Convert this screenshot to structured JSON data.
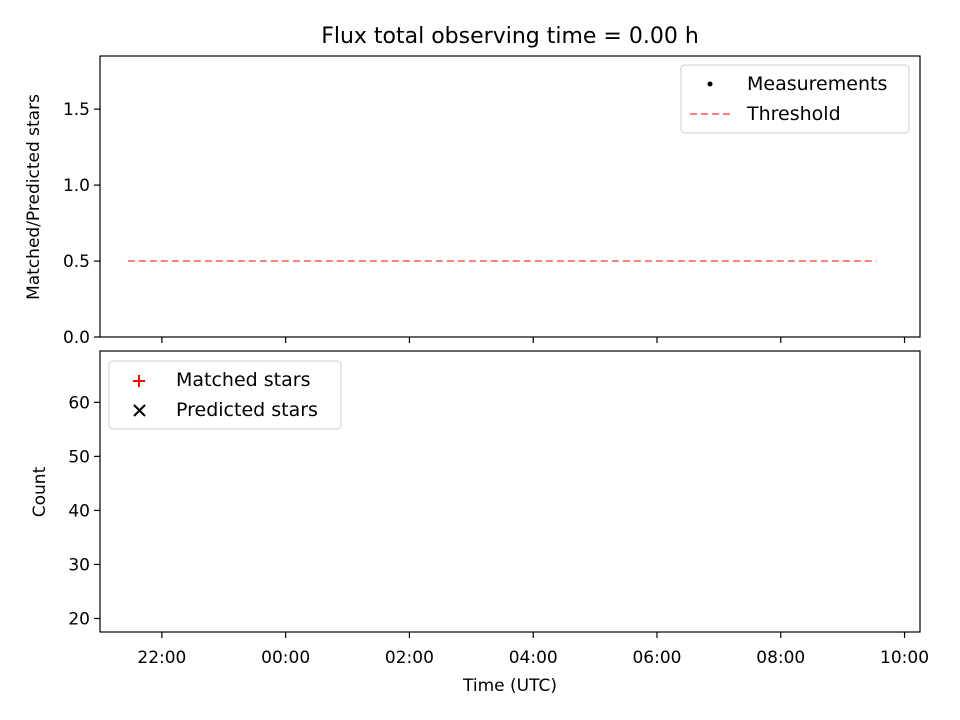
{
  "chart_data": {
    "title": "Flux total observing time = 0.00 h",
    "x_tick_labels": [
      "22:00",
      "00:00",
      "02:00",
      "04:00",
      "06:00",
      "08:00",
      "10:00"
    ],
    "x_tick_hours": [
      22,
      24,
      26,
      28,
      30,
      32,
      34
    ],
    "xlim_hours": [
      21.0,
      34.25
    ],
    "xlabel": "Time (UTC)",
    "panels": [
      {
        "type": "scatter",
        "ylabel": "Matched/Predicted stars",
        "ylim": [
          0,
          1.85
        ],
        "yticks": [
          0.0,
          0.5,
          1.0,
          1.5
        ],
        "ytick_labels": [
          "0.0",
          "0.5",
          "1.0",
          "1.5"
        ],
        "legend_position": "top-right",
        "series": [
          {
            "name": "Measurements",
            "marker": "dot",
            "color": "#000000",
            "x_hours": [],
            "y": []
          }
        ],
        "reference_lines": [
          {
            "name": "Threshold",
            "y": 0.5,
            "x_range_hours": [
              21.45,
              33.55
            ],
            "color": "#ff7f7f",
            "style": "dashed"
          }
        ]
      },
      {
        "type": "scatter",
        "ylabel": "Count",
        "ylim": [
          17.5,
          69.5
        ],
        "yticks": [
          20,
          30,
          40,
          50,
          60
        ],
        "ytick_labels": [
          "20",
          "30",
          "40",
          "50",
          "60"
        ],
        "legend_position": "top-left",
        "series": [
          {
            "name": "Matched stars",
            "marker": "plus",
            "color": "#ff0000",
            "x_hours": [],
            "y": []
          },
          {
            "name": "Predicted stars",
            "marker": "x",
            "color": "#000000",
            "x_hours": [],
            "y": []
          }
        ]
      }
    ]
  }
}
